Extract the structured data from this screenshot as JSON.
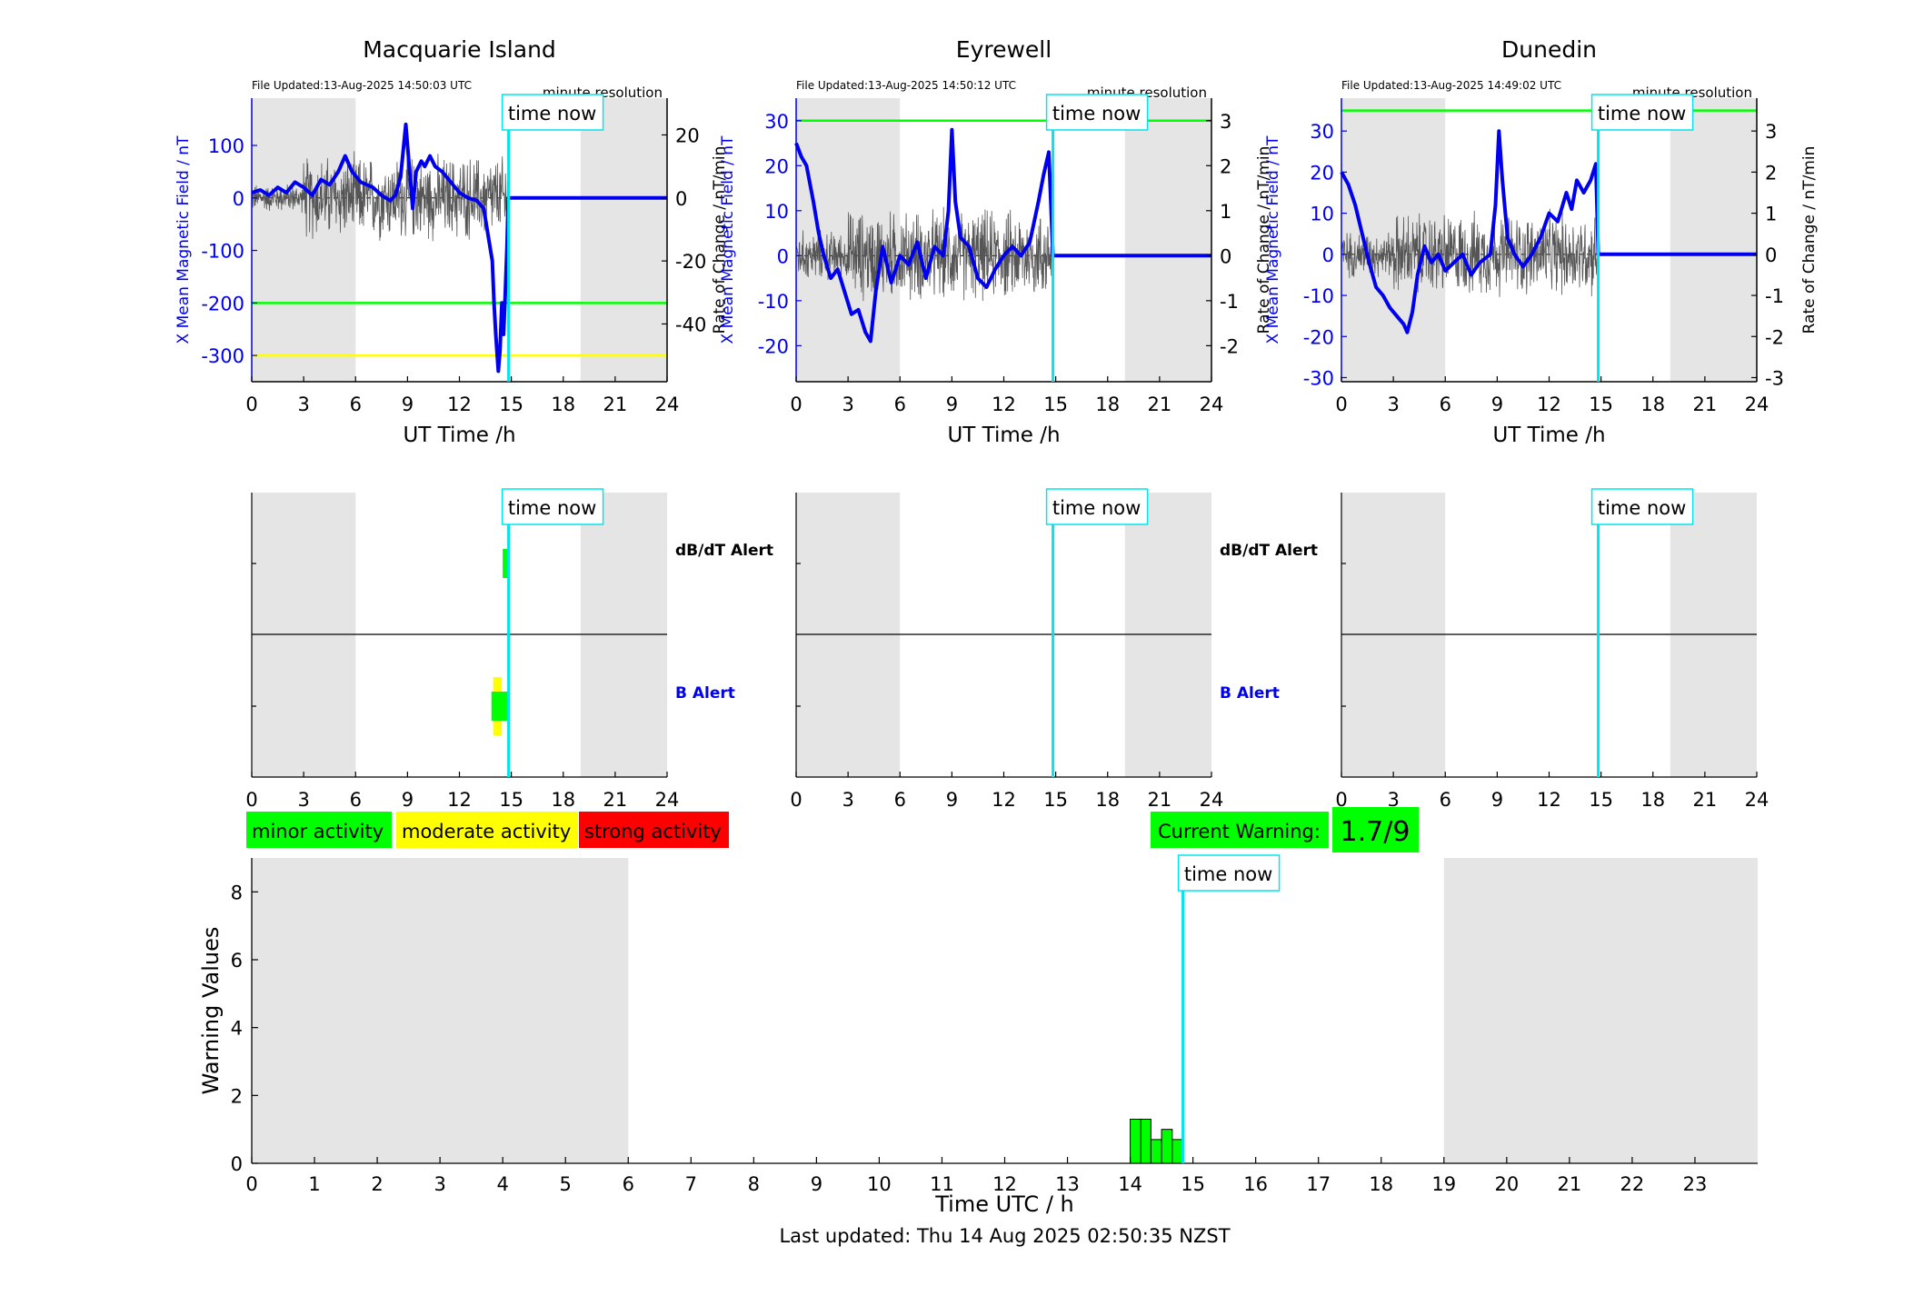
{
  "page": {
    "last_updated": "Last updated: Thu 14 Aug 2025 02:50:35 NZST",
    "time_now_label": "time now",
    "time_now_h": 14.84
  },
  "legend": {
    "items": [
      {
        "label": "minor activity",
        "color": "#00ff00"
      },
      {
        "label": "moderate activity",
        "color": "#ffff00"
      },
      {
        "label": "strong activity",
        "color": "#ff0000"
      }
    ],
    "current_warning_label": "Current Warning:",
    "current_warning_value": "1.7/9",
    "current_warning_color": "#00ff00"
  },
  "colors": {
    "field_line": "#0000ee",
    "rate_line": "#555555",
    "time_now": "#00e5ee",
    "night_shade": "#e5e5e5",
    "threshold_minor": "#00ff00",
    "threshold_moderate": "#ffff00"
  },
  "stations": [
    {
      "name": "Macquarie Island",
      "file_updated": "File Updated:13-Aug-2025 14:50:03 UTC",
      "resolution": "minute resolution",
      "ylabel_left": "X Mean Magnetic Field / nT",
      "ylabel_right": "Rate of Change / nT/min",
      "xlabel": "UT Time /h",
      "ylim": [
        -350,
        190
      ],
      "yticks": [
        -300,
        -200,
        -100,
        0,
        100
      ],
      "ylim_right": [
        -58.33,
        31.67
      ],
      "yticks_right": [
        -40,
        -20,
        0,
        20
      ],
      "night": [
        [
          0,
          6
        ],
        [
          19,
          24
        ]
      ],
      "thresholds": [
        {
          "value": -200,
          "level": "minor"
        },
        {
          "value": -300,
          "level": "moderate"
        }
      ],
      "field": [
        [
          0,
          10
        ],
        [
          0.5,
          15
        ],
        [
          1,
          5
        ],
        [
          1.5,
          20
        ],
        [
          2,
          10
        ],
        [
          2.5,
          30
        ],
        [
          3,
          20
        ],
        [
          3.5,
          5
        ],
        [
          4,
          35
        ],
        [
          4.5,
          25
        ],
        [
          5,
          50
        ],
        [
          5.4,
          80
        ],
        [
          5.8,
          50
        ],
        [
          6.3,
          30
        ],
        [
          7,
          20
        ],
        [
          7.5,
          5
        ],
        [
          8,
          -5
        ],
        [
          8.3,
          5
        ],
        [
          8.6,
          40
        ],
        [
          8.9,
          140
        ],
        [
          9.1,
          60
        ],
        [
          9.3,
          -20
        ],
        [
          9.5,
          50
        ],
        [
          9.8,
          70
        ],
        [
          10,
          60
        ],
        [
          10.3,
          80
        ],
        [
          10.6,
          60
        ],
        [
          11,
          50
        ],
        [
          11.5,
          30
        ],
        [
          12,
          10
        ],
        [
          12.5,
          0
        ],
        [
          13,
          -5
        ],
        [
          13.4,
          -20
        ],
        [
          13.7,
          -80
        ],
        [
          13.9,
          -120
        ],
        [
          14.0,
          -200
        ],
        [
          14.1,
          -260
        ],
        [
          14.25,
          -330
        ],
        [
          14.35,
          -290
        ],
        [
          14.45,
          -200
        ],
        [
          14.55,
          -260
        ],
        [
          14.65,
          -180
        ],
        [
          14.75,
          -90
        ],
        [
          14.82,
          0
        ],
        [
          24,
          0
        ]
      ],
      "rate_amplitude": [
        4,
        12
      ],
      "alerts": {
        "dbdt": {
          "label": "dB/dT Alert",
          "bars": [
            {
              "start": 14.5,
              "end": 14.8,
              "level": "minor"
            }
          ]
        },
        "b": {
          "label": "B Alert",
          "bars": [
            {
              "start": 13.95,
              "end": 14.45,
              "level": "moderate"
            },
            {
              "start": 13.85,
              "end": 14.85,
              "level": "minor"
            }
          ]
        }
      }
    },
    {
      "name": "Eyrewell",
      "file_updated": "File Updated:13-Aug-2025 14:50:12 UTC",
      "resolution": "minute resolution",
      "ylabel_left": "X Mean Magnetic Field / nT",
      "ylabel_right": "Rate of Change / nT/min",
      "xlabel": "UT Time /h",
      "ylim": [
        -28,
        35
      ],
      "yticks": [
        -20,
        -10,
        0,
        10,
        20,
        30
      ],
      "ylim_right": [
        -2.8,
        3.5
      ],
      "yticks_right": [
        -2,
        -1,
        0,
        1,
        2,
        3
      ],
      "night": [
        [
          0,
          6
        ],
        [
          19,
          24
        ]
      ],
      "thresholds": [
        {
          "value": 30,
          "level": "minor"
        }
      ],
      "field": [
        [
          0,
          25
        ],
        [
          0.3,
          22
        ],
        [
          0.6,
          20
        ],
        [
          1,
          12
        ],
        [
          1.3,
          5
        ],
        [
          1.6,
          0
        ],
        [
          2,
          -5
        ],
        [
          2.4,
          -3
        ],
        [
          2.8,
          -8
        ],
        [
          3.2,
          -13
        ],
        [
          3.6,
          -12
        ],
        [
          4,
          -17
        ],
        [
          4.3,
          -19
        ],
        [
          4.6,
          -8
        ],
        [
          5,
          2
        ],
        [
          5.5,
          -6
        ],
        [
          6,
          0
        ],
        [
          6.5,
          -2
        ],
        [
          7,
          3
        ],
        [
          7.5,
          -5
        ],
        [
          8,
          2
        ],
        [
          8.5,
          0
        ],
        [
          8.8,
          10
        ],
        [
          9,
          28
        ],
        [
          9.2,
          12
        ],
        [
          9.5,
          4
        ],
        [
          10,
          2
        ],
        [
          10.5,
          -5
        ],
        [
          11,
          -7
        ],
        [
          11.5,
          -3
        ],
        [
          12,
          0
        ],
        [
          12.5,
          2
        ],
        [
          13,
          0
        ],
        [
          13.5,
          3
        ],
        [
          14,
          12
        ],
        [
          14.3,
          18
        ],
        [
          14.6,
          23
        ],
        [
          14.84,
          0
        ],
        [
          24,
          0
        ]
      ],
      "rate_amplitude": [
        0.5,
        0.9
      ],
      "alerts": {
        "dbdt": {
          "label": "dB/dT Alert",
          "bars": []
        },
        "b": {
          "label": "B Alert",
          "bars": []
        }
      }
    },
    {
      "name": "Dunedin",
      "file_updated": "File Updated:13-Aug-2025 14:49:02 UTC",
      "resolution": "minute resolution",
      "ylabel_left": "X Mean Magnetic Field / nT",
      "ylabel_right": "Rate of Change / nT/min",
      "xlabel": "UT Time /h",
      "ylim": [
        -31,
        38
      ],
      "yticks": [
        -30,
        -20,
        -10,
        0,
        10,
        20,
        30
      ],
      "ylim_right": [
        -3.1,
        3.8
      ],
      "yticks_right": [
        -3,
        -2,
        -1,
        0,
        1,
        2,
        3
      ],
      "night": [
        [
          0,
          6
        ],
        [
          19,
          24
        ]
      ],
      "thresholds": [
        {
          "value": 35,
          "level": "minor"
        }
      ],
      "field": [
        [
          0,
          20
        ],
        [
          0.4,
          17
        ],
        [
          0.8,
          12
        ],
        [
          1.2,
          5
        ],
        [
          1.6,
          -2
        ],
        [
          2,
          -8
        ],
        [
          2.4,
          -10
        ],
        [
          2.8,
          -13
        ],
        [
          3.2,
          -15
        ],
        [
          3.6,
          -17
        ],
        [
          3.8,
          -19
        ],
        [
          4.1,
          -14
        ],
        [
          4.4,
          -5
        ],
        [
          4.8,
          2
        ],
        [
          5.2,
          -2
        ],
        [
          5.6,
          0
        ],
        [
          6,
          -4
        ],
        [
          6.5,
          -2
        ],
        [
          7,
          0
        ],
        [
          7.5,
          -5
        ],
        [
          8,
          -2
        ],
        [
          8.6,
          0
        ],
        [
          8.9,
          12
        ],
        [
          9.1,
          30
        ],
        [
          9.3,
          18
        ],
        [
          9.6,
          4
        ],
        [
          10,
          0
        ],
        [
          10.5,
          -3
        ],
        [
          11,
          0
        ],
        [
          11.5,
          4
        ],
        [
          12,
          10
        ],
        [
          12.5,
          8
        ],
        [
          13,
          15
        ],
        [
          13.3,
          11
        ],
        [
          13.6,
          18
        ],
        [
          14,
          15
        ],
        [
          14.4,
          18
        ],
        [
          14.7,
          22
        ],
        [
          14.84,
          0
        ],
        [
          24,
          0
        ]
      ],
      "rate_amplitude": [
        0.5,
        0.9
      ],
      "alerts": {
        "dbdt": {
          "label": "dB/dT Alert",
          "bars": []
        },
        "b": {
          "label": "B Alert",
          "bars": []
        }
      }
    }
  ],
  "chart_data": {
    "type": "bar",
    "xlabel": "Time UTC / h",
    "ylabel": "Warning Values",
    "xlim": [
      0,
      24
    ],
    "ylim": [
      0,
      9
    ],
    "xticks": [
      0,
      1,
      2,
      3,
      4,
      5,
      6,
      7,
      8,
      9,
      10,
      11,
      12,
      13,
      14,
      15,
      16,
      17,
      18,
      19,
      20,
      21,
      22,
      23
    ],
    "yticks": [
      0,
      2,
      4,
      6,
      8
    ],
    "night": [
      [
        0,
        6
      ],
      [
        19,
        24
      ]
    ],
    "bar_color": "#00ff00",
    "bars": [
      {
        "start": 14.0,
        "end": 14.17,
        "value": 1.3
      },
      {
        "start": 14.17,
        "end": 14.33,
        "value": 1.3
      },
      {
        "start": 14.33,
        "end": 14.5,
        "value": 0.7
      },
      {
        "start": 14.5,
        "end": 14.67,
        "value": 1.0
      },
      {
        "start": 14.67,
        "end": 14.83,
        "value": 0.7
      }
    ]
  }
}
